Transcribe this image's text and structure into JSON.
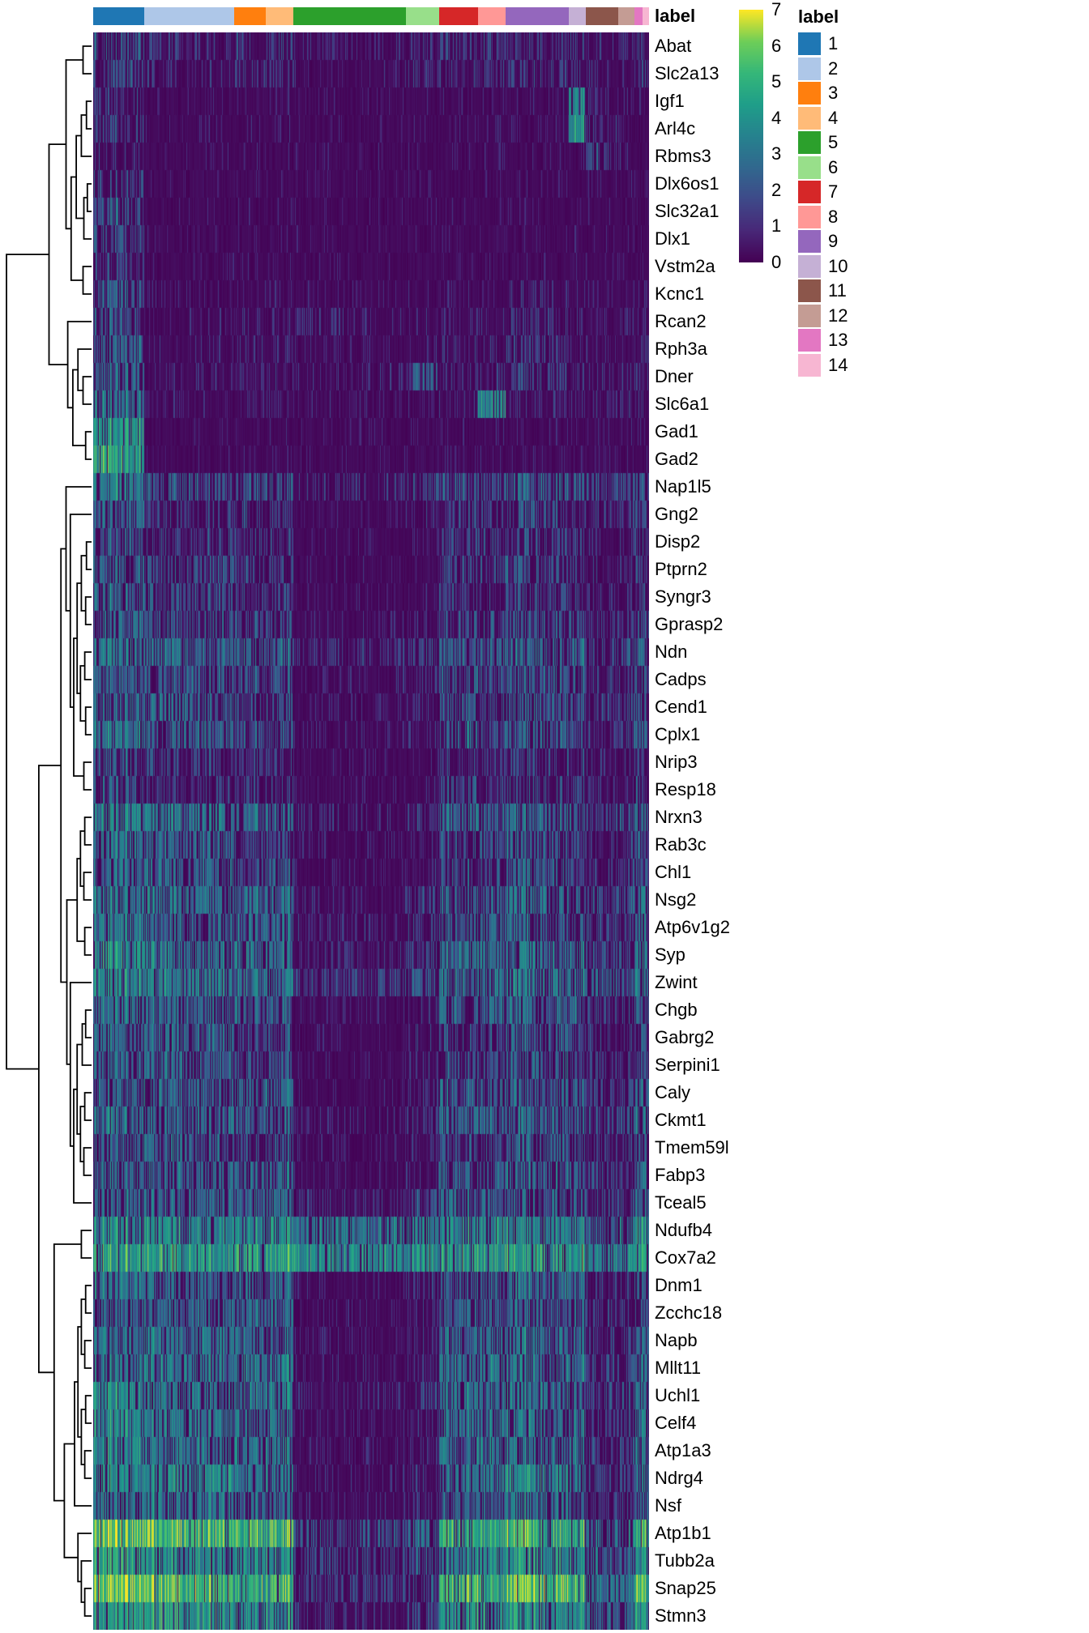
{
  "figure": {
    "annotation_title": "label",
    "legend_title": "label"
  },
  "chart_data": {
    "type": "heatmap",
    "colormap": "viridis",
    "value_range": [
      0,
      7
    ],
    "colorbar_ticks": [
      7,
      6,
      5,
      4,
      3,
      2,
      1,
      0
    ],
    "legend_position": "right",
    "genes": [
      "Abat",
      "Slc2a13",
      "Igf1",
      "Arl4c",
      "Rbms3",
      "Dlx6os1",
      "Slc32a1",
      "Dlx1",
      "Vstm2a",
      "Kcnc1",
      "Rcan2",
      "Rph3a",
      "Dner",
      "Slc6a1",
      "Gad1",
      "Gad2",
      "Nap1l5",
      "Gng2",
      "Disp2",
      "Ptprn2",
      "Syngr3",
      "Gprasp2",
      "Ndn",
      "Cadps",
      "Cend1",
      "Cplx1",
      "Nrip3",
      "Resp18",
      "Nrxn3",
      "Rab3c",
      "Chl1",
      "Nsg2",
      "Atp6v1g2",
      "Syp",
      "Zwint",
      "Chgb",
      "Gabrg2",
      "Serpini1",
      "Caly",
      "Ckmt1",
      "Tmem59l",
      "Fabp3",
      "Tceal5",
      "Ndufb4",
      "Cox7a2",
      "Dnm1",
      "Zcchc18",
      "Napb",
      "Mllt11",
      "Uchl1",
      "Celf4",
      "Atp1a3",
      "Ndrg4",
      "Nsf",
      "Atp1b1",
      "Tubb2a",
      "Snap25",
      "Stmn3"
    ],
    "column_groups": [
      {
        "label": "1",
        "color": "#1f77b4",
        "fraction": 0.092
      },
      {
        "label": "2",
        "color": "#aec7e8",
        "fraction": 0.163
      },
      {
        "label": "3",
        "color": "#ff7f0e",
        "fraction": 0.058
      },
      {
        "label": "4",
        "color": "#ffbb78",
        "fraction": 0.05
      },
      {
        "label": "5",
        "color": "#2ca02c",
        "fraction": 0.204
      },
      {
        "label": "6",
        "color": "#98df8a",
        "fraction": 0.061
      },
      {
        "label": "7",
        "color": "#d62728",
        "fraction": 0.07
      },
      {
        "label": "8",
        "color": "#ff9896",
        "fraction": 0.05
      },
      {
        "label": "9",
        "color": "#9467bd",
        "fraction": 0.114
      },
      {
        "label": "10",
        "color": "#c5b0d5",
        "fraction": 0.032
      },
      {
        "label": "11",
        "color": "#8c564b",
        "fraction": 0.058
      },
      {
        "label": "12",
        "color": "#c49c94",
        "fraction": 0.029
      },
      {
        "label": "13",
        "color": "#e377c2",
        "fraction": 0.015
      },
      {
        "label": "14",
        "color": "#f7b6d2",
        "fraction": 0.012
      }
    ],
    "group_means": [
      [
        2.2,
        1.2,
        1.5,
        1.5,
        0.8,
        1.2,
        1.5,
        1.5,
        1.5,
        1.5,
        1.2,
        1.2,
        1.5,
        1.5
      ],
      [
        2.0,
        1.0,
        1.2,
        1.2,
        0.7,
        1.0,
        1.2,
        1.2,
        1.5,
        1.2,
        1.0,
        1.0,
        1.2,
        1.2
      ],
      [
        1.5,
        0.2,
        0.4,
        0.4,
        0.2,
        0.3,
        0.4,
        0.4,
        0.4,
        3.8,
        1.0,
        0.5,
        0.4,
        0.4
      ],
      [
        1.6,
        0.3,
        0.5,
        0.5,
        0.3,
        0.3,
        0.5,
        0.5,
        0.5,
        3.8,
        1.2,
        0.6,
        0.5,
        0.5
      ],
      [
        1.2,
        0.2,
        0.3,
        0.3,
        0.3,
        0.2,
        0.3,
        0.3,
        0.5,
        0.6,
        2.0,
        0.8,
        0.3,
        0.3
      ],
      [
        1.8,
        0.1,
        0.2,
        0.2,
        0.1,
        0.2,
        0.2,
        0.2,
        0.3,
        0.3,
        0.3,
        0.3,
        0.3,
        0.3
      ],
      [
        2.2,
        0.1,
        0.2,
        0.2,
        0.1,
        0.1,
        0.2,
        0.2,
        0.2,
        0.2,
        0.2,
        0.2,
        0.2,
        0.2
      ],
      [
        2.0,
        0.1,
        0.2,
        0.2,
        0.1,
        0.1,
        0.2,
        0.2,
        0.2,
        0.2,
        0.2,
        0.2,
        0.2,
        0.2
      ],
      [
        1.6,
        0.2,
        0.3,
        0.3,
        0.2,
        0.2,
        0.3,
        0.3,
        0.3,
        0.3,
        0.3,
        0.3,
        0.3,
        0.3
      ],
      [
        2.2,
        0.3,
        0.5,
        0.5,
        0.3,
        0.3,
        0.5,
        0.5,
        1.0,
        0.5,
        0.4,
        0.4,
        0.5,
        0.5
      ],
      [
        2.2,
        0.6,
        0.8,
        0.8,
        1.0,
        0.8,
        0.8,
        0.8,
        1.5,
        0.8,
        0.8,
        0.8,
        0.8,
        0.8
      ],
      [
        2.6,
        0.6,
        1.0,
        1.0,
        0.4,
        0.5,
        1.2,
        1.0,
        1.6,
        1.0,
        0.8,
        0.8,
        1.2,
        1.0
      ],
      [
        2.6,
        0.8,
        1.0,
        1.0,
        0.8,
        2.2,
        1.0,
        1.2,
        1.5,
        1.0,
        1.0,
        1.0,
        1.2,
        1.0
      ],
      [
        3.0,
        0.5,
        0.8,
        0.8,
        0.6,
        0.6,
        0.8,
        3.6,
        1.0,
        1.0,
        1.0,
        1.0,
        1.0,
        0.8
      ],
      [
        4.0,
        0.2,
        0.3,
        0.3,
        0.2,
        0.2,
        0.3,
        0.6,
        0.3,
        0.3,
        0.3,
        0.3,
        0.3,
        0.3
      ],
      [
        4.4,
        0.2,
        0.3,
        0.3,
        0.2,
        0.2,
        0.3,
        0.6,
        0.3,
        0.3,
        0.3,
        0.3,
        0.3,
        0.3
      ],
      [
        3.2,
        2.2,
        2.2,
        2.2,
        1.2,
        1.6,
        2.2,
        2.2,
        2.6,
        2.2,
        2.0,
        2.0,
        2.2,
        2.2
      ],
      [
        2.6,
        1.6,
        1.6,
        1.6,
        0.6,
        1.0,
        1.6,
        1.6,
        2.0,
        1.6,
        1.4,
        1.4,
        1.6,
        1.6
      ],
      [
        2.2,
        1.6,
        1.5,
        1.5,
        0.3,
        0.5,
        1.6,
        1.5,
        2.0,
        1.5,
        1.0,
        1.0,
        1.6,
        1.5
      ],
      [
        2.6,
        2.0,
        1.6,
        1.6,
        0.3,
        0.5,
        1.8,
        1.6,
        2.0,
        1.6,
        1.0,
        1.0,
        1.8,
        1.6
      ],
      [
        2.6,
        2.0,
        1.6,
        1.6,
        0.3,
        0.5,
        1.8,
        1.6,
        2.0,
        1.6,
        1.0,
        1.0,
        1.8,
        1.6
      ],
      [
        2.6,
        2.2,
        2.0,
        2.0,
        0.5,
        1.0,
        2.0,
        2.0,
        2.2,
        2.0,
        1.4,
        1.4,
        2.0,
        2.0
      ],
      [
        3.0,
        2.6,
        2.6,
        2.6,
        1.2,
        1.6,
        2.6,
        2.6,
        2.6,
        2.6,
        2.0,
        2.0,
        2.6,
        2.6
      ],
      [
        2.6,
        2.2,
        2.0,
        2.0,
        0.6,
        1.0,
        2.2,
        2.0,
        2.6,
        2.0,
        1.5,
        1.5,
        2.2,
        2.0
      ],
      [
        2.6,
        2.6,
        2.0,
        2.0,
        0.6,
        1.0,
        2.2,
        2.0,
        2.6,
        2.0,
        1.5,
        1.5,
        2.2,
        2.0
      ],
      [
        3.0,
        2.6,
        2.0,
        2.0,
        0.6,
        1.0,
        2.6,
        2.0,
        2.6,
        2.0,
        1.5,
        1.5,
        2.6,
        2.0
      ],
      [
        2.2,
        1.6,
        1.5,
        1.5,
        0.3,
        0.6,
        1.6,
        1.5,
        2.0,
        1.5,
        1.0,
        1.0,
        1.6,
        1.5
      ],
      [
        2.2,
        1.6,
        1.6,
        1.6,
        0.3,
        0.6,
        2.0,
        1.6,
        2.0,
        1.6,
        1.0,
        1.0,
        2.0,
        1.6
      ],
      [
        3.6,
        3.0,
        2.6,
        2.6,
        1.0,
        1.6,
        2.6,
        2.6,
        3.0,
        2.6,
        2.0,
        2.0,
        2.6,
        2.6
      ],
      [
        3.0,
        2.6,
        2.0,
        2.0,
        0.6,
        1.0,
        2.2,
        2.0,
        2.6,
        2.0,
        1.5,
        1.5,
        2.2,
        2.0
      ],
      [
        2.6,
        2.6,
        2.0,
        2.6,
        0.6,
        1.0,
        2.0,
        2.0,
        2.6,
        2.0,
        1.5,
        1.5,
        2.0,
        2.0
      ],
      [
        3.0,
        3.0,
        2.6,
        2.6,
        1.0,
        1.5,
        2.6,
        2.6,
        3.0,
        2.6,
        2.0,
        2.0,
        2.6,
        2.6
      ],
      [
        3.0,
        2.6,
        2.6,
        2.6,
        1.0,
        1.5,
        2.6,
        2.6,
        2.6,
        2.6,
        2.0,
        2.0,
        2.6,
        2.6
      ],
      [
        3.6,
        3.0,
        3.0,
        3.0,
        1.0,
        1.6,
        3.0,
        3.0,
        3.0,
        3.0,
        2.0,
        2.0,
        3.0,
        3.0
      ],
      [
        3.6,
        3.2,
        3.0,
        3.0,
        1.6,
        2.0,
        3.0,
        3.0,
        3.2,
        3.0,
        2.6,
        2.2,
        3.0,
        3.0
      ],
      [
        3.0,
        2.6,
        2.6,
        2.6,
        0.6,
        1.0,
        2.6,
        2.6,
        2.6,
        2.6,
        1.6,
        1.6,
        2.6,
        2.6
      ],
      [
        2.6,
        2.6,
        2.0,
        2.0,
        0.5,
        1.0,
        2.0,
        2.0,
        2.6,
        2.0,
        1.5,
        1.5,
        2.0,
        2.0
      ],
      [
        2.6,
        2.6,
        2.0,
        2.0,
        0.5,
        1.0,
        2.0,
        2.0,
        2.6,
        2.0,
        1.5,
        1.5,
        2.0,
        2.0
      ],
      [
        2.6,
        2.6,
        2.6,
        2.6,
        0.5,
        1.0,
        2.6,
        2.6,
        2.6,
        2.6,
        1.6,
        1.6,
        2.6,
        2.6
      ],
      [
        3.0,
        2.6,
        2.6,
        2.6,
        1.0,
        1.6,
        2.6,
        2.6,
        2.6,
        2.6,
        2.0,
        2.0,
        2.6,
        2.6
      ],
      [
        2.6,
        2.6,
        2.0,
        2.0,
        0.5,
        1.0,
        2.0,
        2.0,
        2.6,
        2.0,
        1.5,
        1.5,
        2.0,
        2.0
      ],
      [
        2.6,
        2.6,
        2.6,
        2.6,
        0.5,
        1.0,
        2.6,
        2.6,
        2.6,
        2.6,
        1.6,
        1.6,
        2.6,
        2.6
      ],
      [
        2.6,
        2.6,
        2.6,
        2.6,
        1.0,
        1.6,
        2.6,
        2.6,
        2.6,
        2.6,
        2.0,
        2.0,
        2.6,
        2.6
      ],
      [
        3.6,
        3.6,
        3.6,
        3.6,
        3.0,
        3.0,
        3.6,
        3.6,
        3.6,
        3.6,
        3.0,
        3.0,
        3.6,
        3.6
      ],
      [
        4.2,
        4.2,
        4.2,
        4.2,
        3.6,
        3.6,
        4.2,
        4.2,
        4.2,
        4.2,
        3.6,
        3.6,
        4.2,
        4.2
      ],
      [
        3.0,
        2.6,
        2.6,
        2.6,
        0.6,
        1.0,
        2.6,
        2.6,
        3.0,
        2.6,
        1.6,
        1.6,
        2.6,
        2.6
      ],
      [
        2.6,
        2.6,
        2.6,
        2.6,
        0.5,
        1.0,
        2.6,
        2.6,
        2.6,
        2.6,
        1.5,
        1.5,
        2.6,
        2.6
      ],
      [
        3.0,
        3.0,
        2.6,
        2.6,
        0.6,
        1.0,
        2.6,
        2.6,
        3.0,
        2.6,
        1.6,
        1.6,
        2.6,
        2.6
      ],
      [
        3.0,
        3.0,
        3.0,
        3.0,
        0.6,
        1.0,
        3.0,
        3.0,
        3.0,
        3.0,
        1.6,
        1.6,
        3.0,
        3.0
      ],
      [
        3.6,
        3.0,
        3.0,
        3.0,
        1.0,
        1.6,
        3.0,
        3.0,
        3.0,
        3.0,
        2.0,
        2.0,
        3.0,
        3.0
      ],
      [
        3.6,
        3.0,
        3.0,
        3.0,
        0.6,
        1.0,
        3.0,
        3.0,
        3.0,
        3.0,
        1.6,
        1.6,
        3.0,
        3.0
      ],
      [
        3.6,
        3.0,
        3.0,
        3.0,
        0.6,
        1.0,
        3.0,
        3.0,
        3.0,
        3.0,
        1.6,
        1.6,
        3.0,
        3.0
      ],
      [
        3.6,
        3.6,
        3.0,
        3.0,
        0.6,
        1.0,
        3.0,
        3.0,
        3.6,
        3.0,
        1.6,
        1.6,
        3.0,
        3.0
      ],
      [
        3.0,
        3.0,
        2.6,
        2.6,
        0.6,
        1.0,
        2.6,
        2.6,
        3.0,
        2.6,
        1.6,
        1.6,
        2.6,
        2.6
      ],
      [
        5.6,
        5.2,
        5.0,
        5.0,
        2.0,
        2.6,
        4.6,
        4.6,
        5.0,
        4.6,
        3.0,
        3.0,
        4.6,
        4.6
      ],
      [
        4.2,
        3.6,
        3.6,
        3.6,
        1.6,
        2.0,
        3.6,
        3.6,
        4.0,
        3.6,
        2.6,
        2.6,
        3.6,
        3.6
      ],
      [
        5.6,
        5.0,
        4.6,
        4.6,
        1.6,
        2.0,
        5.0,
        4.6,
        5.6,
        5.0,
        3.0,
        3.0,
        5.6,
        5.0
      ],
      [
        4.2,
        4.0,
        3.6,
        3.6,
        1.0,
        1.6,
        4.0,
        3.6,
        4.0,
        4.0,
        2.6,
        2.6,
        4.0,
        4.0
      ]
    ],
    "row_dendrogram": [
      1.0,
      [
        0.5,
        [
          0.3,
          [
            0.1,
            0,
            1
          ],
          [
            0.24,
            [
              0.18,
              [
                0.12,
                [
                  0.06,
                  2,
                  3
                ],
                4
              ],
              [
                0.09,
                [
                  0.05,
                  5,
                  6
                ],
                7
              ]
            ],
            [
              0.1,
              8,
              9
            ]
          ]
        ],
        [
          0.28,
          10,
          [
            0.22,
            [
              0.16,
              11,
              [
                0.1,
                12,
                13
              ]
            ],
            [
              0.07,
              14,
              15
            ]
          ]
        ]
      ],
      [
        0.62,
        [
          0.36,
          [
            0.3,
            16,
            [
              0.25,
              17,
              [
                0.21,
                [
                  0.17,
                  [
                    0.12,
                    [
                      0.06,
                      18,
                      19
                    ],
                    [
                      0.07,
                      20,
                      21
                    ]
                  ],
                  [
                    0.13,
                    [
                      0.08,
                      22,
                      23
                    ],
                    [
                      0.07,
                      24,
                      25
                    ]
                  ]
                ],
                [
                  0.09,
                  26,
                  27
                ]
              ]
            ]
          ],
          [
            0.29,
            [
              0.17,
              [
                0.13,
                [
                  0.08,
                  28,
                  29
                ],
                [
                  0.09,
                  30,
                  31
                ]
              ],
              [
                0.08,
                32,
                33
              ]
            ],
            [
              0.25,
              34,
              [
                0.21,
                [
                  0.17,
                  [
                    0.11,
                    [
                      0.07,
                      35,
                      36
                    ],
                    37
                  ],
                  [
                    0.13,
                    [
                      0.08,
                      38,
                      39
                    ],
                    [
                      0.09,
                      40,
                      41
                    ]
                  ]
                ],
                42
              ]
            ]
          ]
        ],
        [
          0.44,
          [
            0.12,
            43,
            44
          ],
          [
            0.32,
            [
              0.2,
              [
                0.16,
                [
                  0.12,
                  [
                    0.07,
                    45,
                    46
                  ],
                  [
                    0.08,
                    47,
                    48
                  ]
                ],
                [
                  0.12,
                  [
                    0.07,
                    49,
                    50
                  ],
                  [
                    0.08,
                    51,
                    52
                  ]
                ]
              ],
              53
            ],
            [
              0.16,
              54,
              [
                0.12,
                55,
                [
                  0.08,
                  56,
                  57
                ]
              ]
            ]
          ]
        ]
      ]
    ]
  }
}
